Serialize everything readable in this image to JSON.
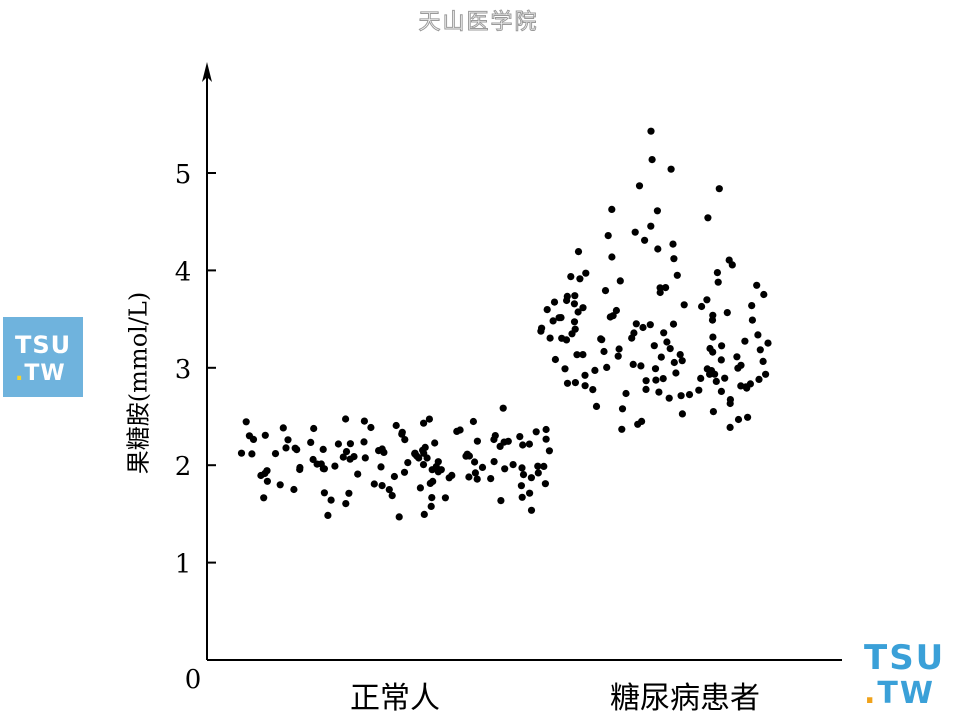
{
  "watermark": "天山医学院",
  "logo": {
    "line1": "TSU",
    "dot": ".",
    "line2": "TW"
  },
  "chart_data": {
    "type": "scatter",
    "title": "",
    "xlabel": "",
    "ylabel": "果糖胺(mmol/L)",
    "categories": [
      "正常人",
      "糖尿病患者"
    ],
    "yticks": [
      0,
      1,
      2,
      3,
      4,
      5
    ],
    "ylim": [
      0,
      5.9
    ],
    "grid": false,
    "marker_color": "#000000",
    "series": [
      {
        "values": [
          2.16,
          2.08,
          2.12,
          1.98,
          1.97,
          2.29,
          2.44,
          2.42,
          2.34,
          2.32,
          2.46,
          2.44,
          2.46,
          2.46,
          2.6,
          2.47,
          2.4,
          2.38,
          2.36,
          2.35,
          2.26,
          2.24,
          2.25,
          2.22,
          2.21,
          2.23,
          2.25,
          2.26,
          2.2,
          2.18,
          2.15,
          2.12,
          2.1,
          2.08,
          2.1,
          2.12,
          2.05,
          2.0,
          2.0,
          2.02,
          1.98,
          1.95,
          1.93,
          1.9,
          1.88,
          1.85,
          1.87,
          1.83,
          1.82,
          1.8,
          1.78,
          1.75,
          1.72,
          1.7,
          1.68,
          1.66,
          1.63,
          1.6,
          1.57,
          1.5,
          1.47,
          1.47,
          1.55,
          2.35,
          2.38,
          2.36,
          2.3,
          2.28,
          2.25,
          2.24,
          2.18,
          2.16,
          2.14,
          2.12,
          2.1,
          2.08,
          2.06,
          2.03,
          2.0,
          1.98,
          1.95,
          1.92,
          1.9,
          1.88,
          1.86,
          1.84,
          1.82,
          1.8,
          1.78,
          1.76,
          1.74,
          1.72,
          1.7,
          1.68,
          1.66,
          1.64,
          2.22,
          2.2,
          2.18,
          2.16,
          2.14,
          2.12,
          2.05,
          2.02,
          1.99,
          1.97,
          1.95,
          1.93,
          1.9,
          1.88,
          1.86,
          2.08,
          2.04,
          2.0,
          1.96,
          1.92,
          1.9,
          2.3,
          2.27,
          2.28,
          2.22,
          2.19,
          2.16,
          2.13,
          2.1,
          2.07,
          2.03,
          2.0,
          1.98,
          1.97
        ]
      },
      {
        "values": [
          5.43,
          5.14,
          5.05,
          4.86,
          4.85,
          4.63,
          4.62,
          4.53,
          4.45,
          4.38,
          4.35,
          4.32,
          4.22,
          4.18,
          4.15,
          4.12,
          4.05,
          3.98,
          3.95,
          3.92,
          3.88,
          3.82,
          3.8,
          3.75,
          3.72,
          3.68,
          3.65,
          3.62,
          3.58,
          3.55,
          3.52,
          3.5,
          3.48,
          3.45,
          3.42,
          3.4,
          3.37,
          3.35,
          3.32,
          3.3,
          3.28,
          3.25,
          3.22,
          3.2,
          3.18,
          3.15,
          3.12,
          3.1,
          3.08,
          3.05,
          3.02,
          3.0,
          2.98,
          2.96,
          2.94,
          2.92,
          2.9,
          2.88,
          2.86,
          2.84,
          2.82,
          2.8,
          2.78,
          2.76,
          2.74,
          2.72,
          2.7,
          2.66,
          2.62,
          2.58,
          2.54,
          2.5,
          2.46,
          2.42,
          2.38,
          2.36,
          3.9,
          3.85,
          3.78,
          3.7,
          3.63,
          3.56,
          3.48,
          3.41,
          3.34,
          3.27,
          3.2,
          3.13,
          3.06,
          2.99,
          2.92,
          2.85,
          2.78,
          3.6,
          3.52,
          3.44,
          3.36,
          3.28,
          3.2,
          3.12,
          3.04,
          2.96,
          2.88,
          2.8,
          3.96,
          3.74,
          3.58,
          3.32,
          3.16,
          3.0,
          2.84,
          4.28,
          4.1,
          3.94,
          3.66,
          3.46,
          3.26,
          3.06,
          2.9,
          3.82,
          3.54,
          3.38,
          3.1,
          2.94,
          2.78,
          3.7,
          3.5,
          3.3,
          3.14,
          2.98,
          2.82,
          2.97,
          2.88,
          2.76,
          3.05,
          3.18,
          3.24,
          2.86,
          3.32,
          3.48,
          3.64,
          2.72,
          2.6,
          2.47,
          2.55
        ]
      }
    ]
  }
}
